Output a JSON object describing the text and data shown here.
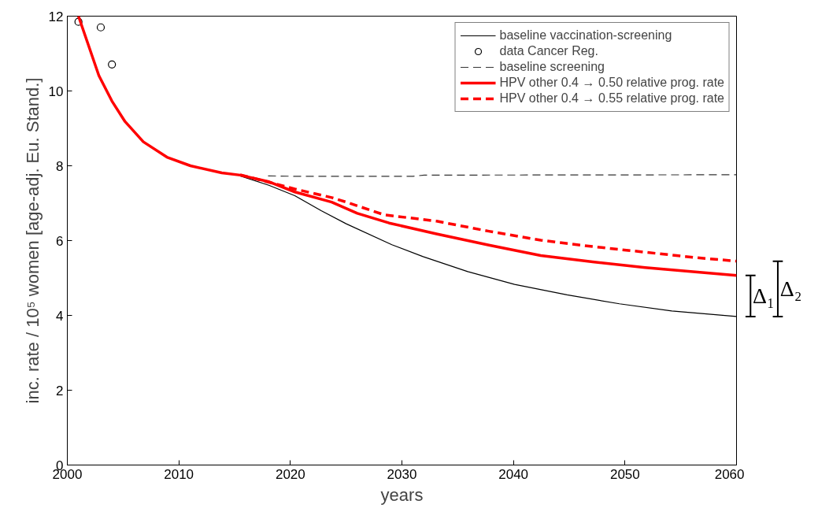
{
  "chart_data": {
    "type": "line",
    "xlabel": "years",
    "ylabel": "inc. rate / 10⁵ women [age-adj. Eu. Stand.]",
    "xlim": [
      2000,
      2060
    ],
    "ylim": [
      0,
      12
    ],
    "xticks": [
      2000,
      2010,
      2020,
      2030,
      2040,
      2050,
      2060
    ],
    "yticks": [
      0,
      2,
      4,
      6,
      8,
      10,
      12
    ],
    "grid": false,
    "legend": "top right",
    "series": [
      {
        "name": "baseline vaccination-screening",
        "color": "#000000",
        "line_style": "solid",
        "marker": "none",
        "x": [
          2015.5,
          2018.07,
          2020.4,
          2022.76,
          2025.0,
          2029.1,
          2031.9,
          2035.9,
          2040.1,
          2044.8,
          2049.5,
          2054.2,
          2060
        ],
        "values": [
          7.73,
          7.48,
          7.2,
          6.8,
          6.45,
          5.89,
          5.57,
          5.17,
          4.83,
          4.55,
          4.31,
          4.12,
          3.97
        ]
      },
      {
        "name": "data Cancer Reg.",
        "type": "scatter",
        "color": "#000000",
        "marker": "circle",
        "x": [
          2001,
          2003,
          2004
        ],
        "values": [
          11.85,
          11.7,
          10.71
        ]
      },
      {
        "name": "baseline screening",
        "color": "#333333",
        "line_style": "dashed",
        "marker": "none",
        "x": [
          2018,
          2020,
          2031,
          2032,
          2060
        ],
        "values": [
          7.73,
          7.72,
          7.72,
          7.75,
          7.76
        ]
      },
      {
        "name": "HPV other 0.4 → 0.50 relative prog. rate",
        "color": "#ff0000",
        "line_style": "solid",
        "marker": "none",
        "x": [
          2001,
          2002.83,
          2004.0,
          2005.18,
          2006.82,
          2008.93,
          2011.04,
          2013.85,
          2015.5,
          2018.0,
          2020.4,
          2023.7,
          2026.0,
          2028.85,
          2033.1,
          2037.8,
          2042.45,
          2047.1,
          2051.8,
          2056.5,
          2060
        ],
        "values": [
          12.0,
          10.41,
          9.73,
          9.18,
          8.64,
          8.23,
          8.0,
          7.81,
          7.75,
          7.58,
          7.3,
          7.03,
          6.73,
          6.47,
          6.18,
          5.88,
          5.6,
          5.43,
          5.28,
          5.16,
          5.07
        ]
      },
      {
        "name": "HPV other 0.4 → 0.55 relative prog. rate",
        "color": "#ff0000",
        "line_style": "dashed",
        "marker": "none",
        "x": [
          2015.5,
          2020.4,
          2023.7,
          2025.0,
          2028.4,
          2033.1,
          2037.8,
          2042.45,
          2047.1,
          2051.8,
          2056.5,
          2060
        ],
        "values": [
          7.76,
          7.38,
          7.15,
          7.03,
          6.69,
          6.52,
          6.25,
          6.01,
          5.84,
          5.69,
          5.54,
          5.45
        ]
      }
    ],
    "annotations": [
      {
        "text": "Δ₁",
        "x": 2060,
        "y": 5.07
      },
      {
        "text": "Δ₂",
        "x": 2060,
        "y": 5.45
      }
    ]
  }
}
